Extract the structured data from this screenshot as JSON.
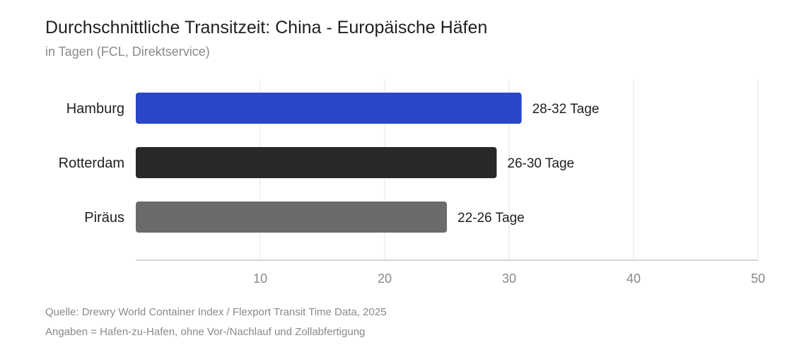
{
  "header": {
    "title": "Durchschnittliche Transitzeit: China - Europäische Häfen",
    "subtitle": "in Tagen (FCL, Direktservice)"
  },
  "footer": {
    "source": "Quelle: Drewry World Container Index / Flexport Transit Time Data, 2025",
    "note": "Angaben = Hafen-zu-Hafen, ohne Vor-/Nachlauf und Zollabfertigung"
  },
  "chart_data": {
    "type": "bar",
    "orientation": "horizontal",
    "categories": [
      "Hamburg",
      "Rotterdam",
      "Piräus"
    ],
    "values": [
      31,
      29,
      25
    ],
    "value_labels": [
      "28-32 Tage",
      "26-30 Tage",
      "22-26 Tage"
    ],
    "colors": [
      "#2846c8",
      "#29292b",
      "#6b6b6b"
    ],
    "xlim": [
      0,
      50
    ],
    "xticks": [
      10,
      20,
      30,
      40,
      50
    ],
    "xlabel": "",
    "ylabel": "",
    "grid": true,
    "legend": "none"
  }
}
